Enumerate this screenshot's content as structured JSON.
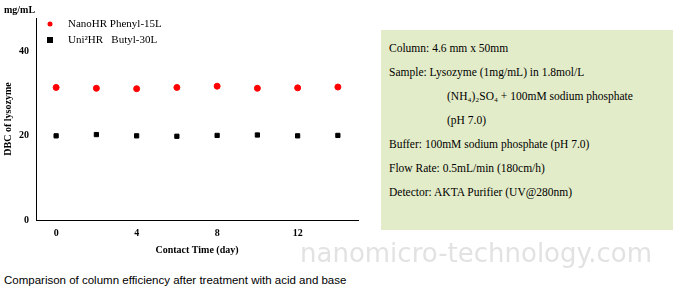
{
  "chart_data": {
    "type": "scatter",
    "x_label": "Contact Time (day)",
    "y_label": "DBC of lysozyme",
    "y_unit": "mg/mL",
    "x": [
      0,
      2,
      4,
      6,
      8,
      10,
      12,
      14
    ],
    "xlim": [
      -1,
      15
    ],
    "xticks": [
      0,
      4,
      8,
      12
    ],
    "ylim": [
      0,
      48
    ],
    "yticks": [
      0,
      20,
      40
    ],
    "grid": false,
    "legend": "top-left",
    "series": [
      {
        "name": "NanoHR Phenyl-15L",
        "color": "#ff0000",
        "marker": "circle",
        "values": [
          31.5,
          31.3,
          31.2,
          31.5,
          31.8,
          31.3,
          31.4,
          31.6
        ]
      },
      {
        "name": "Uni²HR   Butyl-30L",
        "color": "#000000",
        "marker": "square",
        "values": [
          20.0,
          20.3,
          20.0,
          19.9,
          20.1,
          20.2,
          20.0,
          20.1
        ]
      }
    ]
  },
  "info_box": [
    {
      "label": "Column:",
      "lines": [
        "4.6 mm x 50mm"
      ]
    },
    {
      "label": "Sample:",
      "lines": [
        "Lysozyme (1mg/mL) in 1.8mol/L",
        "(NH₄)₂SO₄ + 100mM sodium phosphate",
        "(pH 7.0)"
      ]
    },
    {
      "label": "Buffer:",
      "lines": [
        "100mM sodium phosphate (pH 7.0)"
      ]
    },
    {
      "label": "Flow Rate:",
      "lines": [
        "0.5mL/min (180cm/h)"
      ]
    },
    {
      "label": "Detector:",
      "lines": [
        "AKTA Purifier (UV@280nm)"
      ]
    }
  ],
  "watermark": "nanomicro-technology.com",
  "caption": "Comparison of column efficiency after treatment with acid and base"
}
